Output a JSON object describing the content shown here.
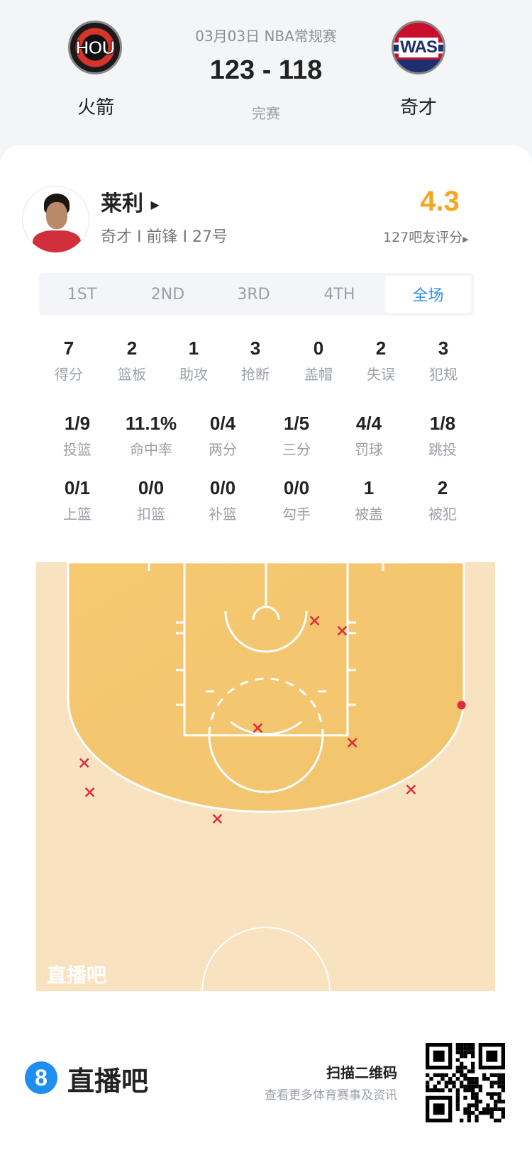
{
  "match": {
    "date_league": "03月03日 NBA常规赛",
    "score": "123 - 118",
    "status": "完赛",
    "home": {
      "abbr": "HOU",
      "name": "火箭"
    },
    "away": {
      "abbr": "WAS",
      "name": "奇才"
    }
  },
  "player": {
    "name": "莱利",
    "info": "奇才 I 前锋 I 27号",
    "rating": "4.3",
    "rating_label": "127吧友评分"
  },
  "tabs": [
    "1ST",
    "2ND",
    "3RD",
    "4TH",
    "全场"
  ],
  "active_tab": "全场",
  "stats_row1": [
    {
      "v": "7",
      "l": "得分"
    },
    {
      "v": "2",
      "l": "篮板"
    },
    {
      "v": "1",
      "l": "助攻"
    },
    {
      "v": "3",
      "l": "抢断"
    },
    {
      "v": "0",
      "l": "盖帽"
    },
    {
      "v": "2",
      "l": "失误"
    },
    {
      "v": "3",
      "l": "犯规"
    }
  ],
  "stats_row2": [
    {
      "v": "1/9",
      "l": "投篮"
    },
    {
      "v": "11.1%",
      "l": "命中率"
    },
    {
      "v": "0/4",
      "l": "两分"
    },
    {
      "v": "1/5",
      "l": "三分"
    },
    {
      "v": "4/4",
      "l": "罚球"
    },
    {
      "v": "1/8",
      "l": "跳投"
    }
  ],
  "stats_row3": [
    {
      "v": "0/1",
      "l": "上篮"
    },
    {
      "v": "0/0",
      "l": "扣篮"
    },
    {
      "v": "0/0",
      "l": "补篮"
    },
    {
      "v": "0/0",
      "l": "勾手"
    },
    {
      "v": "1",
      "l": "被盖"
    },
    {
      "v": "2",
      "l": "被犯"
    }
  ],
  "shot_chart": {
    "watermark": "直播吧",
    "colors": {
      "made": "#e02b3a",
      "missed": "#e02b3a",
      "paint": "#f4c46c",
      "floor": "#f8e1bd",
      "accent": "#2d8ef0",
      "rating": "#f5a623"
    },
    "shots_ft_from_basket": [
      {
        "x": 5.3,
        "y": 1.5,
        "made": false
      },
      {
        "x": 8.3,
        "y": 2.6,
        "made": false
      },
      {
        "x": -0.9,
        "y": 13.2,
        "made": false
      },
      {
        "x": 9.4,
        "y": 14.8,
        "made": false
      },
      {
        "x": -19.8,
        "y": 17.0,
        "made": false
      },
      {
        "x": -19.2,
        "y": 20.2,
        "made": false
      },
      {
        "x": -5.3,
        "y": 23.1,
        "made": false
      },
      {
        "x": 15.8,
        "y": 19.9,
        "made": false
      },
      {
        "x": 21.3,
        "y": 10.7,
        "made": true
      }
    ]
  },
  "footer": {
    "brand": "直播吧",
    "scan": "扫描二维码",
    "sub": "查看更多体育赛事及资讯"
  }
}
